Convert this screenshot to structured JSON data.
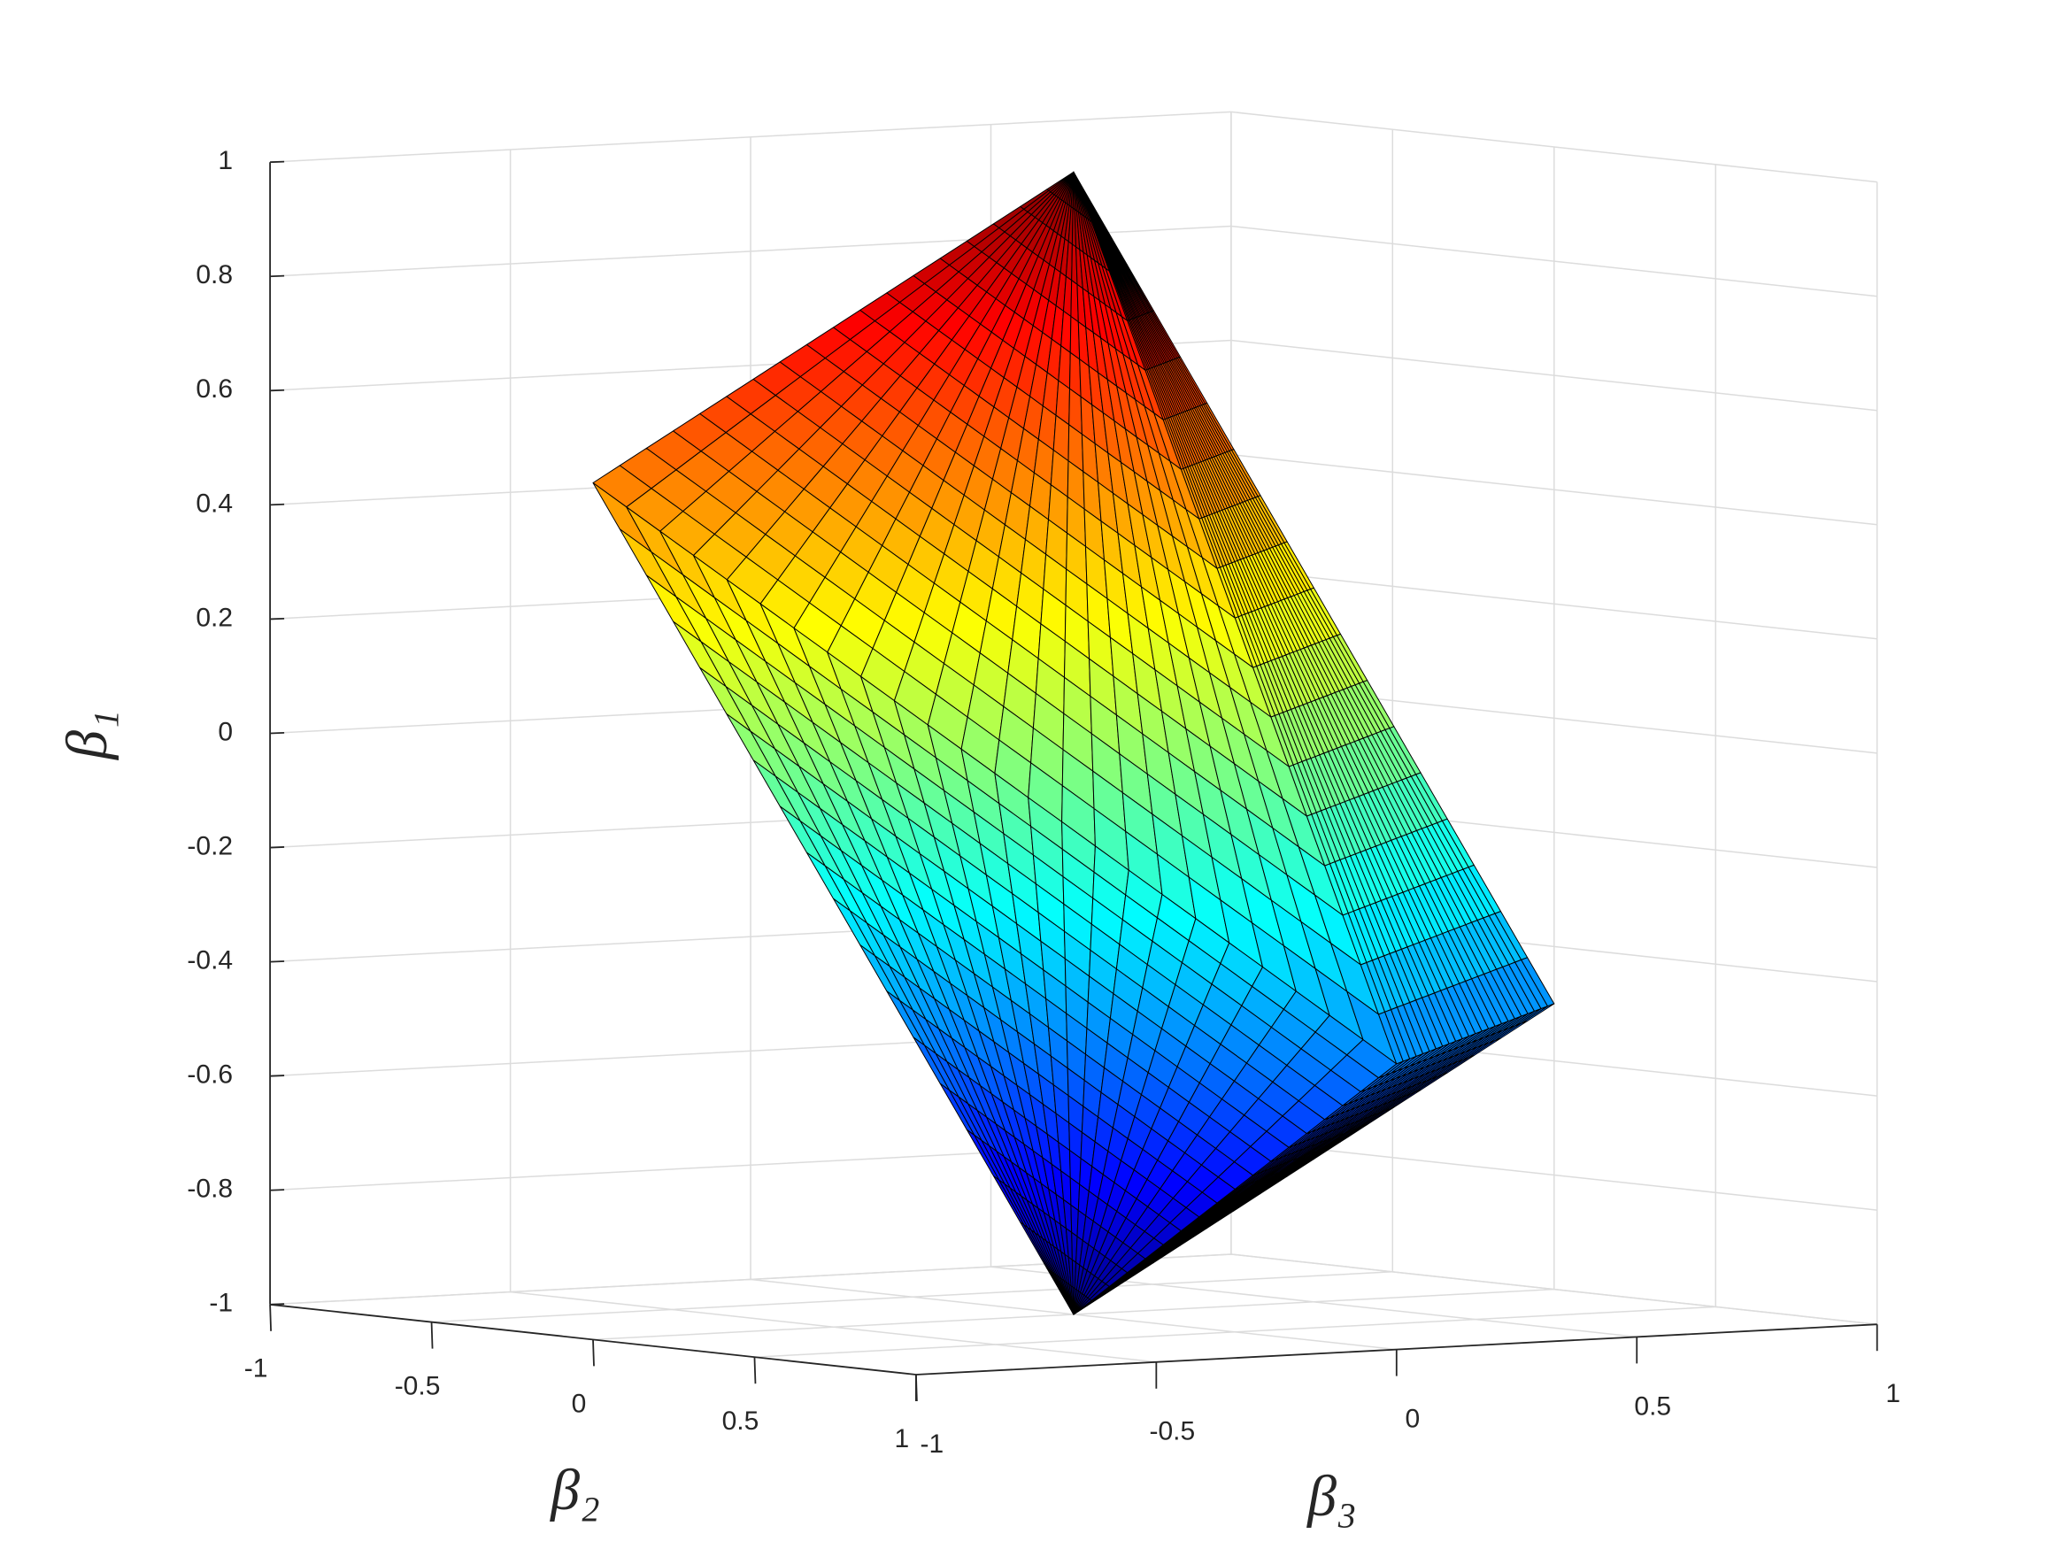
{
  "chart_data": {
    "type": "surface3d",
    "xlabel": "β₂",
    "ylabel": "β₃",
    "zlabel": "β₁",
    "xlim": [
      -1,
      1
    ],
    "ylim": [
      -1,
      1
    ],
    "zlim": [
      -1,
      1
    ],
    "xticks": [
      -1,
      -0.5,
      0,
      0.5,
      1
    ],
    "yticks": [
      -1,
      -0.5,
      0,
      0.5,
      1
    ],
    "zticks": [
      -1,
      -0.8,
      -0.6,
      -0.4,
      -0.2,
      0,
      0.2,
      0.4,
      0.6,
      0.8,
      1
    ],
    "vertices": [
      [
        0,
        0,
        1
      ],
      [
        0,
        0,
        -1
      ],
      [
        0,
        -1,
        0.5
      ],
      [
        0,
        1,
        -0.5
      ],
      [
        1,
        0,
        -0.5
      ],
      [
        -1,
        0,
        0.5
      ]
    ],
    "colormap": "jet",
    "edgecolor": "#000000",
    "grid": true
  }
}
